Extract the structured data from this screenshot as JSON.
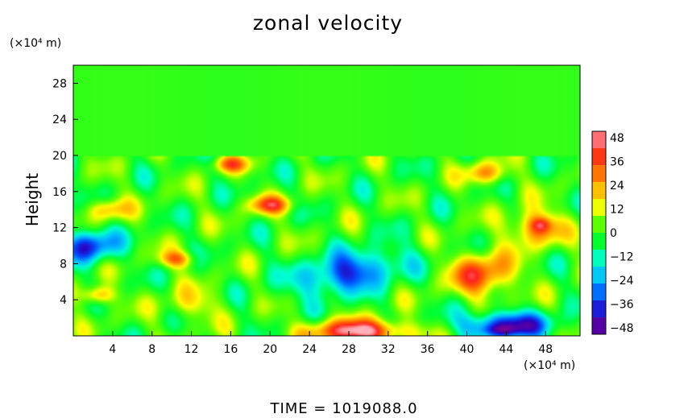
{
  "chart_data": {
    "type": "heatmap",
    "title": "zonal velocity",
    "xlabel": "",
    "ylabel": "Height",
    "x_unit_label": "(×10⁴ m)",
    "y_unit_label": "(×10⁴ m)",
    "xlim": [
      0,
      51.5
    ],
    "ylim": [
      0,
      30
    ],
    "x_ticks": [
      4,
      8,
      12,
      16,
      20,
      24,
      28,
      32,
      36,
      40,
      44,
      48
    ],
    "y_ticks": [
      4,
      8,
      12,
      16,
      20,
      24,
      28
    ],
    "colorbar": {
      "ticks": [
        48,
        36,
        24,
        12,
        0,
        -12,
        -24,
        -36,
        -48
      ],
      "range": [
        -48,
        48
      ],
      "colors": [
        "#7a0090",
        "#2a00c0",
        "#0050ff",
        "#00b8ff",
        "#00ffd0",
        "#00ff30",
        "#60ff00",
        "#ffff00",
        "#ffb000",
        "#ff6000",
        "#ff2020",
        "#ffb0b8"
      ]
    },
    "background_value": 0,
    "tropopause_height": 20,
    "features": [
      {
        "label": "strong positive jet (bottom center)",
        "x": 29,
        "y": 0.5,
        "sx": 5,
        "sy": 1.3,
        "value": 46
      },
      {
        "label": "positive core",
        "x": 41.5,
        "y": 6.8,
        "sx": 3.2,
        "sy": 2.4,
        "value": 34
      },
      {
        "label": "positive upper cell",
        "x": 47,
        "y": 12,
        "sx": 2.6,
        "sy": 2.0,
        "value": 30
      },
      {
        "label": "peak positive",
        "x": 47.5,
        "y": 12.3,
        "sx": 1.0,
        "sy": 0.8,
        "value": 18
      },
      {
        "label": "negative tilted band",
        "x": 28,
        "y": 7,
        "sx": 7,
        "sy": 2.5,
        "value": -34
      },
      {
        "label": "negative upper left",
        "x": 1.5,
        "y": 10,
        "sx": 2.8,
        "sy": 1.8,
        "value": -36
      },
      {
        "label": "negative bottom right",
        "x": 44,
        "y": 1.2,
        "sx": 4.5,
        "sy": 1.5,
        "value": -40
      },
      {
        "label": "peak negative",
        "x": 43.5,
        "y": 0.6,
        "sx": 2.0,
        "sy": 0.6,
        "value": -12
      },
      {
        "label": "positive left",
        "x": 2.5,
        "y": 4.5,
        "sx": 1.6,
        "sy": 1.0,
        "value": 28
      },
      {
        "label": "positive left mid",
        "x": 3.5,
        "y": 14,
        "sx": 2.0,
        "sy": 1.2,
        "value": 22
      },
      {
        "label": "positive streak",
        "x": 20,
        "y": 14.5,
        "sx": 2.2,
        "sy": 1.0,
        "value": 30
      },
      {
        "label": "positive patch",
        "x": 10.5,
        "y": 8.5,
        "sx": 1.8,
        "sy": 0.9,
        "value": 26
      },
      {
        "label": "positive patch top",
        "x": 16,
        "y": 19,
        "sx": 1.8,
        "sy": 0.9,
        "value": 26
      },
      {
        "label": "positive patch right top",
        "x": 42,
        "y": 18,
        "sx": 2.0,
        "sy": 1.2,
        "value": 26
      },
      {
        "label": "positive patch bottom left",
        "x": 12,
        "y": 3.5,
        "sx": 3.0,
        "sy": 1.8,
        "value": 14
      }
    ]
  },
  "footer": {
    "time_label": "TIME  =  1019088.0"
  }
}
